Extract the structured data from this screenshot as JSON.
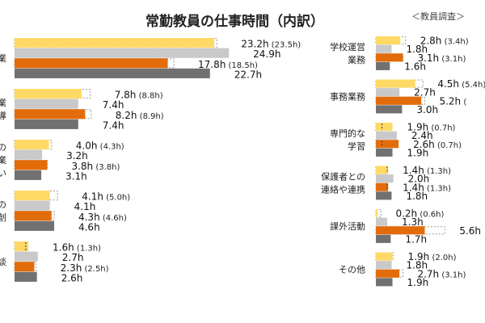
{
  "chart_data": {
    "type": "bar",
    "orientation": "horizontal",
    "title": "常勤教員の仕事時間（内訳）",
    "subtitle": "＜教員調査＞",
    "unit": "h",
    "colors": [
      "#FFD966",
      "#C9C9C9",
      "#E36C0A",
      "#717171"
    ],
    "legend": "none",
    "panels": [
      {
        "groups": [
          {
            "label": [
              "業"
            ],
            "values": [
              23.2,
              24.9,
              17.8,
              22.7
            ],
            "dashed": [
              23.5,
              null,
              18.5,
              null
            ],
            "labels": [
              "23.2h",
              "24.9h",
              "17.8h",
              "22.7h"
            ],
            "paren": [
              "(23.5h)",
              "",
              "(18.5h)",
              ""
            ]
          },
          {
            "label": [
              "業",
              "導"
            ],
            "values": [
              7.8,
              7.4,
              8.2,
              7.4
            ],
            "dashed": [
              8.8,
              null,
              8.9,
              null
            ],
            "labels": [
              "7.8h",
              "7.4h",
              "8.2h",
              "7.4h"
            ],
            "paren": [
              "(8.8h)",
              "",
              "(8.9h)",
              ""
            ]
          },
          {
            "label": [
              "の",
              "業",
              "い"
            ],
            "values": [
              4.0,
              3.2,
              3.8,
              3.1
            ],
            "dashed": [
              4.3,
              null,
              3.8,
              null
            ],
            "labels": [
              "4.0h",
              "3.2h",
              "3.8h",
              "3.1h"
            ],
            "paren": [
              "(4.3h)",
              "",
              "(3.8h)",
              ""
            ]
          },
          {
            "label": [
              "の",
              "創"
            ],
            "values": [
              4.1,
              4.1,
              4.3,
              4.6
            ],
            "dashed": [
              5.0,
              null,
              4.6,
              null
            ],
            "labels": [
              "4.1h",
              "4.1h",
              "4.3h",
              "4.6h"
            ],
            "paren": [
              "(5.0h)",
              "",
              "(4.6h)",
              ""
            ]
          },
          {
            "label": [
              "談"
            ],
            "values": [
              1.6,
              2.7,
              2.3,
              2.6
            ],
            "dashed": [
              1.3,
              null,
              2.5,
              null
            ],
            "labels": [
              "1.6h",
              "2.7h",
              "2.3h",
              "2.6h"
            ],
            "paren": [
              "(1.3h)",
              "",
              "(2.5h)",
              ""
            ]
          }
        ]
      },
      {
        "groups": [
          {
            "label": [
              "学校運営",
              "業務"
            ],
            "values": [
              2.8,
              1.8,
              3.1,
              1.6
            ],
            "dashed": [
              3.4,
              null,
              3.1,
              null
            ],
            "labels": [
              "2.8h",
              "1.8h",
              "3.1h",
              "1.6h"
            ],
            "paren": [
              "(3.4h)",
              "",
              "(3.1h)",
              ""
            ]
          },
          {
            "label": [
              "事務業務"
            ],
            "values": [
              4.5,
              2.7,
              5.2,
              3.0
            ],
            "dashed": [
              5.4,
              null,
              5.6,
              null
            ],
            "labels": [
              "4.5h",
              "2.7h",
              "5.2h",
              "3.0h"
            ],
            "paren": [
              "(5.4h)",
              "",
              "(",
              ""
            ]
          },
          {
            "label": [
              "専門的な",
              "学習"
            ],
            "values": [
              1.9,
              2.4,
              2.6,
              1.9
            ],
            "dashed": [
              0.7,
              null,
              0.7,
              null
            ],
            "labels": [
              "1.9h",
              "2.4h",
              "2.6h",
              "1.9h"
            ],
            "paren": [
              "(0.7h)",
              "",
              "(0.7h)",
              ""
            ]
          },
          {
            "label": [
              "保護者との",
              "連絡や連携"
            ],
            "values": [
              1.4,
              2.0,
              1.4,
              1.8
            ],
            "dashed": [
              1.3,
              null,
              1.3,
              null
            ],
            "labels": [
              "1.4h",
              "2.0h",
              "1.4h",
              "1.8h"
            ],
            "paren": [
              "(1.3h)",
              "",
              "(1.3h)",
              ""
            ]
          },
          {
            "label": [
              "課外活動"
            ],
            "values": [
              0.2,
              1.3,
              5.6,
              1.7
            ],
            "dashed": [
              0.6,
              null,
              7.9,
              null
            ],
            "labels": [
              "0.2h",
              "1.3h",
              "5.6h",
              "1.7h"
            ],
            "paren": [
              "(0.6h)",
              "",
              "",
              ""
            ]
          },
          {
            "label": [
              "その他"
            ],
            "values": [
              1.9,
              1.8,
              2.7,
              1.9
            ],
            "dashed": [
              2.0,
              null,
              3.1,
              null
            ],
            "labels": [
              "1.9h",
              "1.8h",
              "2.7h",
              "1.9h"
            ],
            "paren": [
              "(2.0h)",
              "",
              "(3.1h)",
              ""
            ]
          }
        ]
      }
    ]
  }
}
